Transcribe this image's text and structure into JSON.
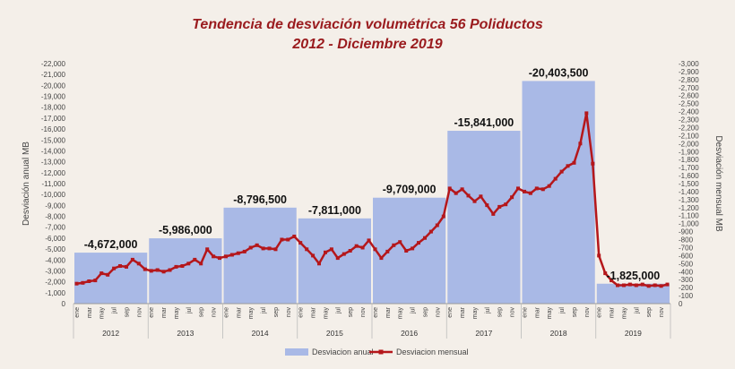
{
  "chart_data": {
    "type": "bar+line",
    "title": "Tendencia de desviación volumétrica 56 Poliductos",
    "subtitle": "2012 - Diciembre 2019",
    "ylabel_left": "Desviación anual MB",
    "ylabel_right": "Desviación mensual MB",
    "y_left_range": [
      0,
      -22000
    ],
    "y_left_ticks": [
      "0",
      "-1,000",
      "-2,000",
      "-3,000",
      "-4,000",
      "-5,000",
      "-6,000",
      "-7,000",
      "-8,000",
      "-9,000",
      "-10,000",
      "-11,000",
      "-12,000",
      "-13,000",
      "-14,000",
      "-15,000",
      "-16,000",
      "-17,000",
      "-18,000",
      "-19,000",
      "-20,000",
      "-21,000",
      "-22,000"
    ],
    "y_right_range": [
      0,
      -3000
    ],
    "y_right_ticks": [
      "0",
      "-100",
      "-200",
      "-300",
      "-400",
      "-500",
      "-600",
      "-700",
      "-800",
      "-900",
      "-1,000",
      "-1,100",
      "-1,200",
      "-1,300",
      "-1,400",
      "-1,500",
      "-1,600",
      "-1,700",
      "-1,800",
      "-1,900",
      "-2,000",
      "-2,100",
      "-2,200",
      "-2,300",
      "-2,400",
      "-2,500",
      "-2,600",
      "-2,700",
      "-2,800",
      "-2,900",
      "-3,000"
    ],
    "month_labels": [
      "ene",
      "mar",
      "may",
      "jul",
      "sep",
      "nov"
    ],
    "years": [
      "2012",
      "2013",
      "2014",
      "2015",
      "2016",
      "2017",
      "2018",
      "2019"
    ],
    "annual": {
      "name": "Desviacion anual",
      "color": "#a9b9e6",
      "values": [
        -4672000,
        -5986000,
        -8796500,
        -7811000,
        -9709000,
        -15841000,
        -20403500,
        -1825000
      ],
      "labels": [
        "-4,672,000",
        "-5,986,000",
        "-8,796,500",
        "-7,811,000",
        "-9,709,000",
        "-15,841,000",
        "-20,403,500",
        "-1,825,000"
      ]
    },
    "monthly": {
      "name": "Desviacion mensual",
      "color": "#b5171b",
      "values": [
        -250,
        -260,
        -280,
        -290,
        -380,
        -360,
        -440,
        -470,
        -460,
        -550,
        -500,
        -430,
        -410,
        -420,
        -400,
        -420,
        -460,
        -470,
        -500,
        -550,
        -500,
        -680,
        -590,
        -570,
        -590,
        -610,
        -630,
        -650,
        -700,
        -730,
        -690,
        -690,
        -680,
        -800,
        -800,
        -840,
        -760,
        -680,
        -600,
        -500,
        -640,
        -680,
        -570,
        -620,
        -660,
        -720,
        -700,
        -790,
        -680,
        -570,
        -650,
        -730,
        -770,
        -660,
        -690,
        -760,
        -820,
        -900,
        -980,
        -1090,
        -1440,
        -1380,
        -1430,
        -1350,
        -1280,
        -1340,
        -1230,
        -1120,
        -1210,
        -1240,
        -1330,
        -1440,
        -1400,
        -1380,
        -1440,
        -1430,
        -1470,
        -1560,
        -1650,
        -1720,
        -1760,
        -2000,
        -2380,
        -1750,
        -600,
        -380,
        -290,
        -230,
        -230,
        -240,
        -230,
        -240,
        -220,
        -230,
        -220,
        -240
      ]
    },
    "legend_position": "bottom-center",
    "grid": false
  }
}
